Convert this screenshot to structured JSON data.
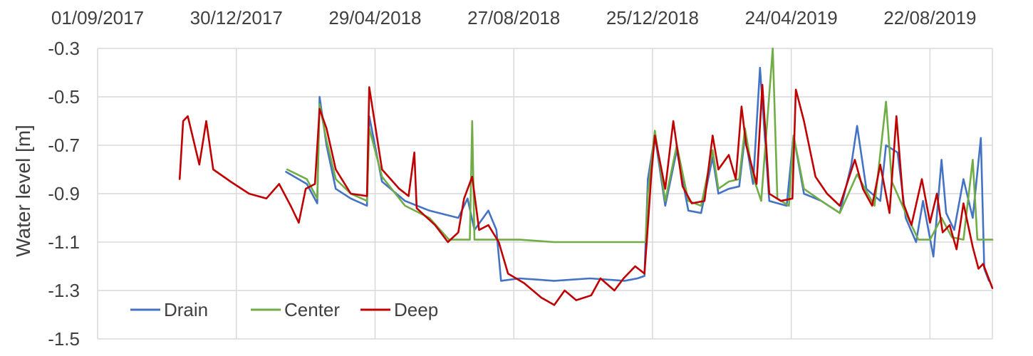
{
  "chart_data": {
    "type": "line",
    "title": "",
    "xlabel": "",
    "ylabel": "Water level [m]",
    "x_axis_position": "top",
    "x_ticks": [
      "01/09/2017",
      "30/12/2017",
      "29/04/2018",
      "27/08/2018",
      "25/12/2018",
      "24/04/2019",
      "22/08/2019"
    ],
    "xlim": [
      "2017-09-01",
      "2019-10-15"
    ],
    "ylim": [
      -1.5,
      -0.3
    ],
    "y_ticks": [
      -0.3,
      -0.5,
      -0.7,
      -0.9,
      -1.1,
      -1.3,
      -1.5
    ],
    "grid": true,
    "legend_position": "bottom-left",
    "colors": {
      "Drain": "#4472c4",
      "Center": "#70ad47",
      "Deep": "#c00000"
    },
    "series": [
      {
        "name": "Drain",
        "points": [
          [
            "2018-02-11",
            -0.81
          ],
          [
            "2018-03-01",
            -0.86
          ],
          [
            "2018-03-10",
            -0.94
          ],
          [
            "2018-03-12",
            -0.5
          ],
          [
            "2018-03-18",
            -0.7
          ],
          [
            "2018-03-26",
            -0.88
          ],
          [
            "2018-04-08",
            -0.92
          ],
          [
            "2018-04-22",
            -0.95
          ],
          [
            "2018-04-24",
            -0.58
          ],
          [
            "2018-05-05",
            -0.85
          ],
          [
            "2018-05-25",
            -0.93
          ],
          [
            "2018-06-15",
            -0.97
          ],
          [
            "2018-07-10",
            -1.0
          ],
          [
            "2018-07-18",
            -0.92
          ],
          [
            "2018-07-24",
            -1.05
          ],
          [
            "2018-08-05",
            -0.97
          ],
          [
            "2018-08-12",
            -1.05
          ],
          [
            "2018-08-16",
            -1.26
          ],
          [
            "2018-09-01",
            -1.25
          ],
          [
            "2018-10-01",
            -1.26
          ],
          [
            "2018-11-01",
            -1.25
          ],
          [
            "2018-12-01",
            -1.26
          ],
          [
            "2018-12-12",
            -1.25
          ],
          [
            "2018-12-18",
            -1.24
          ],
          [
            "2018-12-21",
            -0.84
          ],
          [
            "2018-12-27",
            -0.66
          ],
          [
            "2019-01-05",
            -0.95
          ],
          [
            "2019-01-15",
            -0.72
          ],
          [
            "2019-01-25",
            -0.97
          ],
          [
            "2019-02-05",
            -0.98
          ],
          [
            "2019-02-15",
            -0.75
          ],
          [
            "2019-02-20",
            -0.9
          ],
          [
            "2019-03-01",
            -0.88
          ],
          [
            "2019-03-10",
            -0.87
          ],
          [
            "2019-03-15",
            -0.66
          ],
          [
            "2019-03-22",
            -0.86
          ],
          [
            "2019-03-28",
            -0.38
          ],
          [
            "2019-04-05",
            -0.93
          ],
          [
            "2019-04-20",
            -0.95
          ],
          [
            "2019-04-26",
            -0.66
          ],
          [
            "2019-05-05",
            -0.9
          ],
          [
            "2019-05-20",
            -0.93
          ],
          [
            "2019-06-05",
            -0.98
          ],
          [
            "2019-06-15",
            -0.78
          ],
          [
            "2019-06-20",
            -0.62
          ],
          [
            "2019-06-28",
            -0.88
          ],
          [
            "2019-07-10",
            -0.93
          ],
          [
            "2019-07-15",
            -0.7
          ],
          [
            "2019-07-25",
            -0.73
          ],
          [
            "2019-08-01",
            -1.0
          ],
          [
            "2019-08-10",
            -1.1
          ],
          [
            "2019-08-16",
            -0.93
          ],
          [
            "2019-08-25",
            -1.16
          ],
          [
            "2019-09-01",
            -0.76
          ],
          [
            "2019-09-05",
            -0.98
          ],
          [
            "2019-09-12",
            -1.05
          ],
          [
            "2019-09-20",
            -0.84
          ],
          [
            "2019-09-28",
            -1.0
          ],
          [
            "2019-10-05",
            -0.67
          ],
          [
            "2019-10-08",
            -1.21
          ],
          [
            "2019-10-12",
            -1.26
          ]
        ]
      },
      {
        "name": "Center",
        "points": [
          [
            "2018-02-12",
            -0.8
          ],
          [
            "2018-03-01",
            -0.84
          ],
          [
            "2018-03-10",
            -0.92
          ],
          [
            "2018-03-12",
            -0.53
          ],
          [
            "2018-03-18",
            -0.68
          ],
          [
            "2018-03-26",
            -0.84
          ],
          [
            "2018-04-08",
            -0.9
          ],
          [
            "2018-04-22",
            -0.93
          ],
          [
            "2018-04-24",
            -0.63
          ],
          [
            "2018-05-05",
            -0.83
          ],
          [
            "2018-05-25",
            -0.95
          ],
          [
            "2018-06-15",
            -1.0
          ],
          [
            "2018-07-02",
            -1.09
          ],
          [
            "2018-07-20",
            -1.09
          ],
          [
            "2018-07-22",
            -0.6
          ],
          [
            "2018-07-24",
            -1.09
          ],
          [
            "2018-09-01",
            -1.09
          ],
          [
            "2018-10-01",
            -1.1
          ],
          [
            "2018-11-01",
            -1.1
          ],
          [
            "2018-12-19",
            -1.1
          ],
          [
            "2018-12-21",
            -0.9
          ],
          [
            "2018-12-27",
            -0.64
          ],
          [
            "2019-01-05",
            -0.93
          ],
          [
            "2019-01-15",
            -0.7
          ],
          [
            "2019-01-25",
            -0.93
          ],
          [
            "2019-02-05",
            -0.95
          ],
          [
            "2019-02-15",
            -0.72
          ],
          [
            "2019-02-20",
            -0.88
          ],
          [
            "2019-03-01",
            -0.85
          ],
          [
            "2019-03-10",
            -0.84
          ],
          [
            "2019-03-15",
            -0.63
          ],
          [
            "2019-03-22",
            -0.83
          ],
          [
            "2019-03-29",
            -0.93
          ],
          [
            "2019-04-08",
            -0.3
          ],
          [
            "2019-04-12",
            -0.92
          ],
          [
            "2019-04-22",
            -0.95
          ],
          [
            "2019-04-26",
            -0.66
          ],
          [
            "2019-05-05",
            -0.88
          ],
          [
            "2019-05-20",
            -0.93
          ],
          [
            "2019-06-05",
            -0.98
          ],
          [
            "2019-06-20",
            -0.82
          ],
          [
            "2019-07-05",
            -0.95
          ],
          [
            "2019-07-15",
            -0.52
          ],
          [
            "2019-07-20",
            -0.85
          ],
          [
            "2019-08-01",
            -0.98
          ],
          [
            "2019-08-12",
            -1.09
          ],
          [
            "2019-08-22",
            -1.09
          ],
          [
            "2019-09-01",
            -1.0
          ],
          [
            "2019-09-10",
            -1.08
          ],
          [
            "2019-09-20",
            -1.09
          ],
          [
            "2019-09-28",
            -0.76
          ],
          [
            "2019-10-02",
            -1.09
          ],
          [
            "2019-10-15",
            -1.09
          ]
        ]
      },
      {
        "name": "Deep",
        "points": [
          [
            "2017-11-11",
            -0.84
          ],
          [
            "2017-11-14",
            -0.6
          ],
          [
            "2017-11-18",
            -0.58
          ],
          [
            "2017-11-28",
            -0.78
          ],
          [
            "2017-12-04",
            -0.6
          ],
          [
            "2017-12-10",
            -0.8
          ],
          [
            "2017-12-25",
            -0.85
          ],
          [
            "2018-01-10",
            -0.9
          ],
          [
            "2018-01-25",
            -0.92
          ],
          [
            "2018-02-05",
            -0.86
          ],
          [
            "2018-02-15",
            -0.95
          ],
          [
            "2018-02-22",
            -1.02
          ],
          [
            "2018-02-28",
            -0.88
          ],
          [
            "2018-03-08",
            -0.86
          ],
          [
            "2018-03-12",
            -0.55
          ],
          [
            "2018-03-18",
            -0.63
          ],
          [
            "2018-03-26",
            -0.8
          ],
          [
            "2018-04-08",
            -0.9
          ],
          [
            "2018-04-22",
            -0.91
          ],
          [
            "2018-04-24",
            -0.46
          ],
          [
            "2018-05-05",
            -0.8
          ],
          [
            "2018-05-20",
            -0.88
          ],
          [
            "2018-05-28",
            -0.91
          ],
          [
            "2018-06-02",
            -0.73
          ],
          [
            "2018-06-04",
            -0.96
          ],
          [
            "2018-06-20",
            -1.03
          ],
          [
            "2018-07-01",
            -1.1
          ],
          [
            "2018-07-10",
            -1.06
          ],
          [
            "2018-07-15",
            -0.92
          ],
          [
            "2018-07-22",
            -0.83
          ],
          [
            "2018-07-28",
            -1.05
          ],
          [
            "2018-08-05",
            -1.03
          ],
          [
            "2018-08-14",
            -1.1
          ],
          [
            "2018-08-22",
            -1.23
          ],
          [
            "2018-09-05",
            -1.27
          ],
          [
            "2018-09-20",
            -1.33
          ],
          [
            "2018-10-01",
            -1.36
          ],
          [
            "2018-10-10",
            -1.3
          ],
          [
            "2018-10-20",
            -1.34
          ],
          [
            "2018-11-02",
            -1.32
          ],
          [
            "2018-11-10",
            -1.25
          ],
          [
            "2018-11-22",
            -1.3
          ],
          [
            "2018-11-30",
            -1.25
          ],
          [
            "2018-12-10",
            -1.2
          ],
          [
            "2018-12-18",
            -1.23
          ],
          [
            "2018-12-20",
            -1.1
          ],
          [
            "2018-12-24",
            -0.82
          ],
          [
            "2018-12-27",
            -0.66
          ],
          [
            "2019-01-05",
            -0.88
          ],
          [
            "2019-01-12",
            -0.6
          ],
          [
            "2019-01-20",
            -0.87
          ],
          [
            "2019-01-28",
            -0.94
          ],
          [
            "2019-02-08",
            -0.93
          ],
          [
            "2019-02-15",
            -0.66
          ],
          [
            "2019-02-20",
            -0.8
          ],
          [
            "2019-03-01",
            -0.74
          ],
          [
            "2019-03-07",
            -0.84
          ],
          [
            "2019-03-12",
            -0.54
          ],
          [
            "2019-03-16",
            -0.7
          ],
          [
            "2019-03-25",
            -0.86
          ],
          [
            "2019-03-30",
            -0.45
          ],
          [
            "2019-04-05",
            -0.9
          ],
          [
            "2019-04-15",
            -0.93
          ],
          [
            "2019-04-25",
            -0.92
          ],
          [
            "2019-04-28",
            -0.47
          ],
          [
            "2019-05-05",
            -0.6
          ],
          [
            "2019-05-15",
            -0.83
          ],
          [
            "2019-05-25",
            -0.9
          ],
          [
            "2019-06-05",
            -0.95
          ],
          [
            "2019-06-18",
            -0.76
          ],
          [
            "2019-06-25",
            -0.88
          ],
          [
            "2019-07-03",
            -0.95
          ],
          [
            "2019-07-10",
            -0.78
          ],
          [
            "2019-07-18",
            -0.98
          ],
          [
            "2019-07-24",
            -0.58
          ],
          [
            "2019-07-30",
            -0.94
          ],
          [
            "2019-08-06",
            -1.03
          ],
          [
            "2019-08-15",
            -0.84
          ],
          [
            "2019-08-22",
            -1.02
          ],
          [
            "2019-08-28",
            -0.9
          ],
          [
            "2019-09-02",
            -1.06
          ],
          [
            "2019-09-08",
            -1.03
          ],
          [
            "2019-09-14",
            -1.13
          ],
          [
            "2019-09-20",
            -0.94
          ],
          [
            "2019-09-28",
            -1.12
          ],
          [
            "2019-10-03",
            -1.21
          ],
          [
            "2019-10-07",
            -1.19
          ],
          [
            "2019-10-15",
            -1.29
          ]
        ]
      }
    ]
  }
}
